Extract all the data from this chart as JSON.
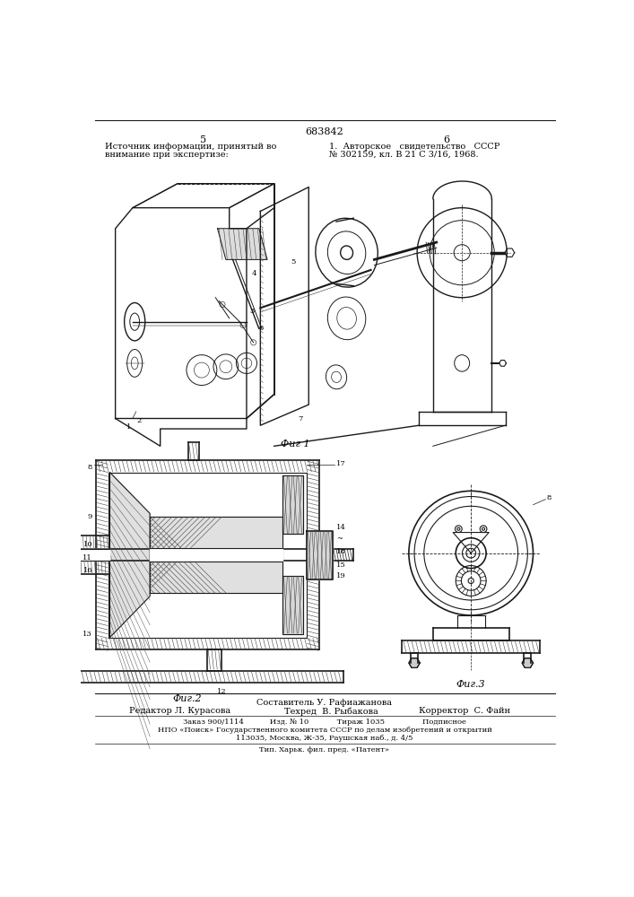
{
  "patent_number": "683842",
  "page_left": "5",
  "page_right": "6",
  "top_left_text_1": "Источник информации, принятый во",
  "top_left_text_2": "внимание при экспертизе:",
  "top_right_text_1": "1.  Авторское   свидетельство   СССР",
  "top_right_text_2": "№ 302159, кл. В 21 С 3/16, 1968.",
  "fig1_caption": "Фиг 1",
  "fig2_caption": "Фиг.2",
  "fig3_caption": "Фиг.3",
  "footer_sestavitel": "Составитель У. Рафиажанова",
  "footer_redaktor": "Редактор Л. Курасова",
  "footer_tehred": "Техред  В. Рыбакова",
  "footer_korrektor": "Корректор  С. Файн",
  "footer_zakaz": "Заказ 900/1114           Изд. № 10            Тираж 1035                Подписное",
  "footer_npo": "НПО «Поиск» Государственного комитета СССР по делам изобретений и открытий",
  "footer_address": "113035, Москва, Ж-35, Раушская наб., д. 4/5",
  "footer_tip": "Тип. Харьк. фил. пред. «Патент»",
  "bg_color": "#ffffff",
  "text_color": "#000000",
  "line_color": "#1a1a1a",
  "hatch_color": "#444444",
  "dpi": 100,
  "figsize": [
    7.07,
    10.0
  ]
}
